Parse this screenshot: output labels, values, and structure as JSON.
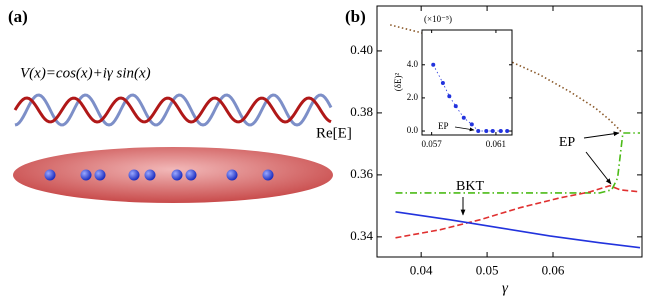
{
  "panel_a": {
    "label": "(a)",
    "formula": "V(x)=cos(x)+iγ sin(x)"
  },
  "chart_data": [
    {
      "type": "line",
      "label": "(b)",
      "x_label": "γ",
      "y_label": "Re[E]",
      "xlim": [
        0.0333,
        0.0735
      ],
      "ylim": [
        0.3335,
        0.4145
      ],
      "xticks": [
        0.04,
        0.05,
        0.06
      ],
      "yticks": [
        0.34,
        0.36,
        0.38,
        {
          "value": 0.4,
          "label": "0.40"
        }
      ],
      "series": [
        {
          "color": "#8b5a2b",
          "style": "dotted",
          "x": [
            0.0353,
            0.0444,
            0.052,
            0.058,
            0.0626,
            0.0664,
            0.0686,
            0.0698,
            0.0705
          ],
          "values": [
            0.4084,
            0.4035,
            0.3981,
            0.3923,
            0.3868,
            0.3816,
            0.3777,
            0.3752,
            0.3735
          ]
        },
        {
          "color": "#4cbb17",
          "style": "dashdot",
          "x": [
            0.0361,
            0.0671,
            0.0689,
            0.0698,
            0.0703,
            0.0706,
            0.0732
          ],
          "values": [
            0.3542,
            0.3542,
            0.3552,
            0.359,
            0.3681,
            0.3735,
            0.3735
          ]
        },
        {
          "color": "#e03030",
          "style": "dashed",
          "x": [
            0.0361,
            0.0429,
            0.0489,
            0.055,
            0.0611,
            0.0656,
            0.0686,
            0.0702,
            0.0732
          ],
          "values": [
            0.3397,
            0.3423,
            0.3455,
            0.3494,
            0.3526,
            0.3545,
            0.3565,
            0.3552,
            0.3545
          ]
        },
        {
          "color": "#2233dd",
          "style": "solid",
          "x": [
            0.0361,
            0.0444,
            0.052,
            0.0595,
            0.067,
            0.0732
          ],
          "values": [
            0.3481,
            0.3455,
            0.3429,
            0.3403,
            0.3381,
            0.3365
          ]
        }
      ],
      "annotations": [
        "BKT",
        "EP"
      ]
    },
    {
      "type": "line",
      "y_label": "(δE)²",
      "multiplier": "(×10⁻⁵)",
      "markers": true,
      "xlim": [
        0.0564,
        0.062
      ],
      "ylim": [
        -0.24,
        6.1
      ],
      "xticks": [
        0.057,
        0.061
      ],
      "yticks": [
        {
          "value": 0,
          "label": "0.0"
        },
        {
          "value": 2,
          "label": "2.0"
        },
        {
          "value": 4,
          "label": "4.0"
        }
      ],
      "series": [
        {
          "color": "#2233dd",
          "style": "dotted",
          "x": [
            0.0571,
            0.0577,
            0.0581,
            0.0585,
            0.059,
            0.0595,
            0.0599,
            0.0604,
            0.0608,
            0.0613,
            0.0617
          ],
          "values": [
            4.0,
            2.9,
            2.1,
            1.5,
            0.8,
            0.4,
            0,
            0,
            0,
            0,
            0
          ]
        }
      ],
      "annotations": [
        "EP"
      ]
    }
  ]
}
